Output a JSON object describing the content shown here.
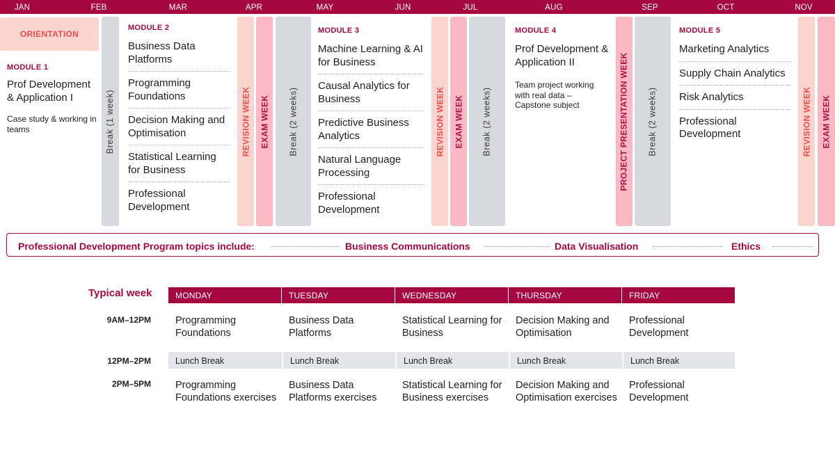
{
  "months": [
    "JAN",
    "FEB",
    "MAR",
    "APR",
    "MAY",
    "JUN",
    "JUL",
    "AUG",
    "SEP",
    "OCT",
    "NOV"
  ],
  "orientation": "ORIENTATION",
  "labels": {
    "break_1": "Break (1 week)",
    "break_2": "Break (2 weeks)",
    "revision": "REVISION WEEK",
    "exam": "EXAM WEEK",
    "project": "PROJECT PRESENTATION WEEK"
  },
  "module1": {
    "title": "MODULE 1",
    "topic": "Prof Development & Application I",
    "note": "Case study & working in teams"
  },
  "module2": {
    "title": "MODULE 2",
    "topics": [
      "Business Data Platforms",
      "Programming Foundations",
      "Decision Making and Optimisation",
      "Statistical Learning for Business",
      "Professional Development"
    ]
  },
  "module3": {
    "title": "MODULE 3",
    "topics": [
      "Machine Learning & AI for Business",
      "Causal Analytics for Business",
      "Predictive Business Analytics",
      "Natural Language Processing",
      "Professional Development"
    ]
  },
  "module4": {
    "title": "MODULE 4",
    "topic": "Prof Development & Application II",
    "note": "Team project working with real data – Capstone subject"
  },
  "module5": {
    "title": "MODULE 5",
    "topics": [
      "Marketing Analytics",
      "Supply Chain Analytics",
      "Risk Analytics",
      "Professional Development"
    ]
  },
  "pdp": {
    "label": "Professional Development Program topics include:",
    "items": [
      "Business Communications",
      "Data Visualisation",
      "Ethics"
    ]
  },
  "typical_week": {
    "label": "Typical week",
    "days": [
      "MONDAY",
      "TUESDAY",
      "WEDNESDAY",
      "THURSDAY",
      "FRIDAY"
    ],
    "times": [
      "9AM–12PM",
      "12PM–2PM",
      "2PM–5PM"
    ],
    "morning": [
      "Programming Foundations",
      "Business Data Platforms",
      "Statistical Learning for Business",
      "Decision Making and Optimisation",
      "Professional Development"
    ],
    "lunch": [
      "Lunch Break",
      "Lunch Break",
      "Lunch Break",
      "Lunch Break",
      "Lunch Break"
    ],
    "afternoon": [
      "Programming Foundations exercises",
      "Business Data Platforms exercises",
      "Statistical Learning for Business exercises",
      "Decision Making and Optimisation exercises",
      "Professional Development"
    ]
  },
  "colors": {
    "brand": "#a5073f",
    "coral": "#ef4c4c",
    "pink_light": "#fad4cf",
    "pink": "#fbb9c3",
    "grey": "#d8d9df"
  }
}
